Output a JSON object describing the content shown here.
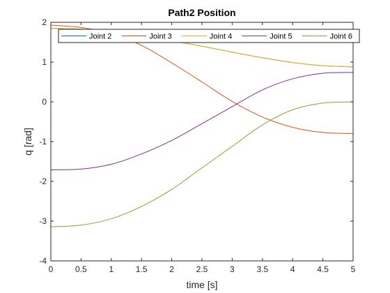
{
  "chart_data": {
    "type": "line",
    "title": "Path2 Position",
    "xlabel": "time [s]",
    "ylabel": "q [rad]",
    "xlim": [
      0,
      5
    ],
    "ylim": [
      -4,
      2
    ],
    "xticks": [
      0,
      0.5,
      1,
      1.5,
      2,
      2.5,
      3,
      3.5,
      4,
      4.5,
      5
    ],
    "xtick_labels": [
      "0",
      "0.5",
      "1",
      "1.5",
      "2",
      "2.5",
      "3",
      "3.5",
      "4",
      "4.5",
      "5"
    ],
    "yticks": [
      -4,
      -3,
      -2,
      -1,
      0,
      1,
      2
    ],
    "ytick_labels": [
      "-4",
      "-3",
      "-2",
      "-1",
      "0",
      "1",
      "2"
    ],
    "grid": false,
    "legend_position": "top, horizontal",
    "x": [
      0,
      0.5,
      1,
      1.5,
      2,
      2.5,
      3,
      3.5,
      4,
      4.5,
      5
    ],
    "series": [
      {
        "name": "Joint 2",
        "color": "#0072BD",
        "values": [
          1.85,
          1.83,
          1.77,
          1.67,
          1.54,
          1.4,
          1.25,
          1.11,
          0.99,
          0.91,
          0.88
        ]
      },
      {
        "name": "Joint 3",
        "color": "#D95319",
        "values": [
          1.93,
          1.87,
          1.72,
          1.42,
          0.98,
          0.5,
          0.01,
          -0.38,
          -0.64,
          -0.77,
          -0.8
        ]
      },
      {
        "name": "Joint 4",
        "color": "#EDB120",
        "values": [
          1.85,
          1.83,
          1.77,
          1.67,
          1.54,
          1.4,
          1.25,
          1.11,
          0.99,
          0.91,
          0.88
        ]
      },
      {
        "name": "Joint 5",
        "color": "#7E2F8E",
        "values": [
          -1.71,
          -1.69,
          -1.57,
          -1.31,
          -0.97,
          -0.55,
          -0.12,
          0.3,
          0.58,
          0.72,
          0.74
        ]
      },
      {
        "name": "Joint 6",
        "color": "#77AC30",
        "values": [
          -3.14,
          -3.1,
          -2.94,
          -2.63,
          -2.2,
          -1.66,
          -1.12,
          -0.58,
          -0.2,
          -0.03,
          0.0
        ]
      }
    ]
  }
}
